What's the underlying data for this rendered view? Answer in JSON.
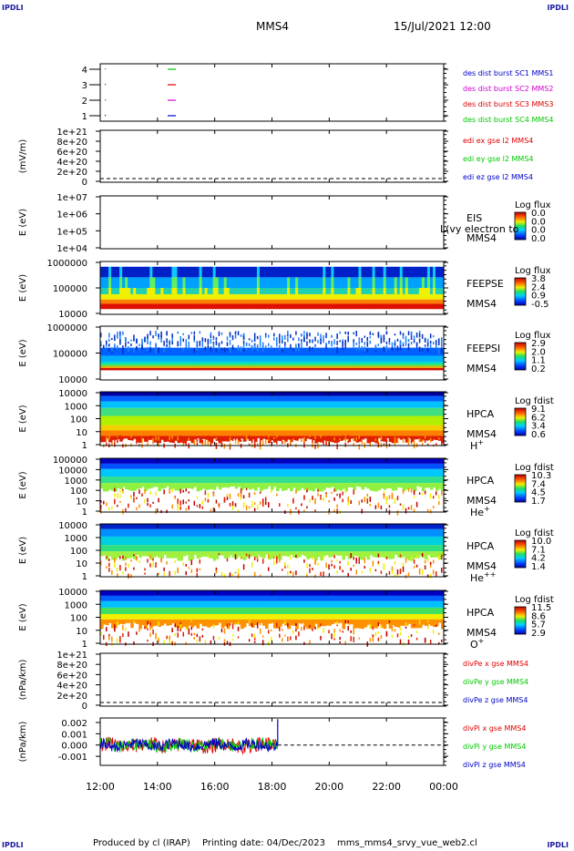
{
  "page": {
    "corner_label": "IPDLI",
    "spacecraft": "MMS4",
    "datetime": "15/Jul/2021 12:00",
    "footer_producer": "Produced by cl (IRAP)",
    "footer_date": "Printing date: 04/Dec/2023",
    "footer_file": "mms_mms4_srvy_vue_web2.cl"
  },
  "colors": {
    "red": "#e00000",
    "green": "#00c800",
    "blue": "#0000c8",
    "magenta": "#d000d0"
  },
  "chart_data": {
    "type": "stacked_timeseries",
    "x_ticks": [
      "12:00",
      "14:00",
      "16:00",
      "18:00",
      "20:00",
      "22:00",
      "00:00"
    ],
    "x_range_hours": [
      12,
      24
    ],
    "panels": [
      {
        "kind": "index",
        "ylabel": "",
        "yticks": [
          "4",
          "3",
          "2",
          "1"
        ],
        "legend": [
          {
            "text": "des dist burst SC1 MMS1",
            "color": "#0000c8"
          },
          {
            "text": "des dist burst SC2 MMS2",
            "color": "#d000d0"
          },
          {
            "text": "des dist burst SC3 MMS3",
            "color": "#e00000"
          },
          {
            "text": "des dist burst SC4 MMS4",
            "color": "#00c800"
          }
        ]
      },
      {
        "kind": "line_empty",
        "ylabel": "(mV/m)",
        "yticks": [
          "1e+21",
          "8e+20",
          "6e+20",
          "4e+20",
          "2e+20",
          "0"
        ],
        "legend": [
          {
            "text": "edi ex gse l2 MMS4",
            "color": "#e00000"
          },
          {
            "text": "edi ey gse l2 MMS4",
            "color": "#00c800"
          },
          {
            "text": "edi ez gse l2 MMS4",
            "color": "#0000c8"
          }
        ]
      },
      {
        "kind": "spectrogram",
        "ylabel": "E (eV)",
        "yticks": [
          "1e+07",
          "1e+06",
          "1e+05",
          "1e+04"
        ],
        "labels": [
          "EIS",
          "MMS4"
        ],
        "overlay_label": "L(vy electron to",
        "cbar_title": "Log flux",
        "cbar_ticks": [
          "0.0",
          "0.0",
          "0.0",
          "0.0"
        ],
        "fill": "none"
      },
      {
        "kind": "spectrogram",
        "ylabel": "E (eV)",
        "yticks": [
          "1000000",
          "100000",
          "10000"
        ],
        "labels": [
          "FEEPSE",
          "MMS4"
        ],
        "cbar_title": "Log flux",
        "cbar_ticks": [
          "3.8",
          "2.4",
          "0.9",
          "-0.5"
        ],
        "fill": "feepse"
      },
      {
        "kind": "spectrogram",
        "ylabel": "E (eV)",
        "yticks": [
          "1000000",
          "100000",
          "10000"
        ],
        "labels": [
          "FEEPSI",
          "MMS4"
        ],
        "cbar_title": "Log flux",
        "cbar_ticks": [
          "2.9",
          "2.0",
          "1.1",
          "0.2"
        ],
        "fill": "feepsi"
      },
      {
        "kind": "spectrogram",
        "ylabel": "E (eV)",
        "yticks": [
          "10000",
          "1000",
          "100",
          "10",
          "1"
        ],
        "labels": [
          "HPCA",
          "MMS4"
        ],
        "species": "H",
        "species_sup": "+",
        "cbar_title": "Log fdist",
        "cbar_ticks": [
          "9.1",
          "6.2",
          "3.4",
          "0.6"
        ],
        "fill": "hplus"
      },
      {
        "kind": "spectrogram",
        "ylabel": "E (eV)",
        "yticks": [
          "100000",
          "10000",
          "1000",
          "100",
          "10",
          "1"
        ],
        "labels": [
          "HPCA",
          "MMS4"
        ],
        "species": "He",
        "species_sup": "+",
        "cbar_title": "Log fdist",
        "cbar_ticks": [
          "10.3",
          "7.4",
          "4.5",
          "1.7"
        ],
        "fill": "heplus"
      },
      {
        "kind": "spectrogram",
        "ylabel": "E (eV)",
        "yticks": [
          "10000",
          "1000",
          "100",
          "10",
          "1"
        ],
        "labels": [
          "HPCA",
          "MMS4"
        ],
        "species": "He",
        "species_sup": "++",
        "cbar_title": "Log fdist",
        "cbar_ticks": [
          "10.0",
          "7.1",
          "4.2",
          "1.4"
        ],
        "fill": "heplusplus"
      },
      {
        "kind": "spectrogram",
        "ylabel": "E (eV)",
        "yticks": [
          "10000",
          "1000",
          "100",
          "10",
          "1"
        ],
        "labels": [
          "HPCA",
          "MMS4"
        ],
        "species": "O",
        "species_sup": "+",
        "cbar_title": "Log fdist",
        "cbar_ticks": [
          "11.5",
          "8.6",
          "5.7",
          "2.9"
        ],
        "fill": "oplus"
      },
      {
        "kind": "line_empty",
        "ylabel": "(nPa/km)",
        "yticks": [
          "1e+21",
          "8e+20",
          "6e+20",
          "4e+20",
          "2e+20",
          "0"
        ],
        "legend": [
          {
            "text": "divPe x gse MMS4",
            "color": "#e00000"
          },
          {
            "text": "divPe y gse MMS4",
            "color": "#00c800"
          },
          {
            "text": "divPe z gse MMS4",
            "color": "#0000c8"
          }
        ]
      },
      {
        "kind": "line_data",
        "ylabel": "(nPa/km)",
        "yticks": [
          "0.002",
          "0.001",
          "0.000",
          "-0.001"
        ],
        "ytick_values": [
          0.002,
          0.001,
          0.0,
          -0.001
        ],
        "yrange": [
          -0.0018,
          0.0024
        ],
        "data_end_hour": 18.2,
        "spike_value": 0.0023,
        "legend": [
          {
            "text": "divPi x gse MMS4",
            "color": "#e00000"
          },
          {
            "text": "divPi y gse MMS4",
            "color": "#00c800"
          },
          {
            "text": "divPi z gse MMS4",
            "color": "#0000c8"
          }
        ]
      }
    ]
  }
}
